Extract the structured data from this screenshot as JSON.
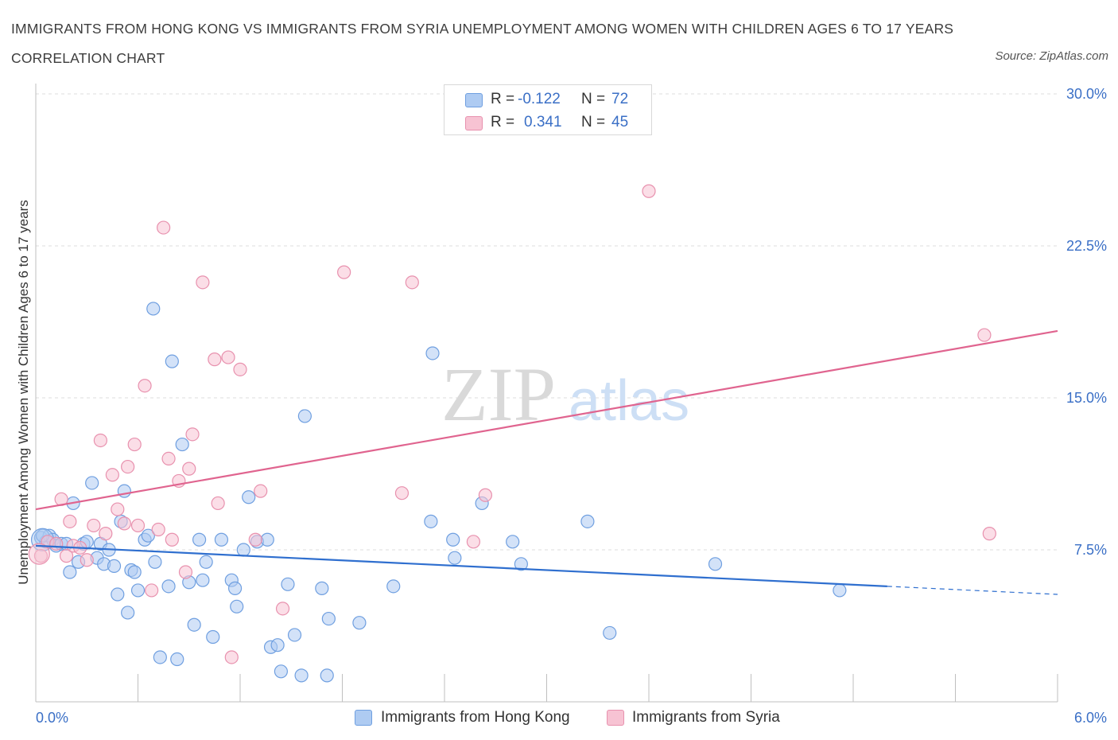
{
  "title": "IMMIGRANTS FROM HONG KONG VS IMMIGRANTS FROM SYRIA UNEMPLOYMENT AMONG WOMEN WITH CHILDREN AGES 6 TO 17 YEARS CORRELATION CHART",
  "source": "Source: ZipAtlas.com",
  "watermark": {
    "zip": "ZIP",
    "atlas": "atlas"
  },
  "legend": {
    "hk": {
      "r_label": "R =",
      "r_value": "-0.122",
      "n_label": "N =",
      "n_value": "72"
    },
    "syria": {
      "r_label": "R =",
      "r_value": "0.341",
      "n_label": "N =",
      "n_value": "45"
    }
  },
  "colors": {
    "hk_fill": "#aecbf2",
    "hk_stroke": "#6f9fe0",
    "hk_line": "#2f6fcf",
    "syria_fill": "#f7c3d3",
    "syria_stroke": "#e891ae",
    "syria_line": "#e0648f",
    "axis_text": "#3a6fc6"
  },
  "chart_data": {
    "type": "scatter",
    "title": "IMMIGRANTS FROM HONG KONG VS IMMIGRANTS FROM SYRIA UNEMPLOYMENT AMONG WOMEN WITH CHILDREN AGES 6 TO 17 YEARS CORRELATION CHART",
    "xlabel": "",
    "ylabel": "Unemployment Among Women with Children Ages 6 to 17 years",
    "xlim": [
      0,
      6.0
    ],
    "ylim": [
      0,
      30.0
    ],
    "x_tick_labels": [
      "0.0%",
      "6.0%"
    ],
    "y_tick_labels": [
      "7.5%",
      "15.0%",
      "22.5%",
      "30.0%"
    ],
    "y_ticks": [
      7.5,
      15.0,
      22.5,
      30.0
    ],
    "grid": true,
    "legend_position": "top-center",
    "series": [
      {
        "name": "Immigrants from Hong Kong",
        "points": [
          [
            0.03,
            8.1
          ],
          [
            0.06,
            7.9
          ],
          [
            0.08,
            8.2
          ],
          [
            0.1,
            8.0
          ],
          [
            0.12,
            7.7
          ],
          [
            0.15,
            7.8
          ],
          [
            0.18,
            7.8
          ],
          [
            0.2,
            6.4
          ],
          [
            0.22,
            9.8
          ],
          [
            0.25,
            6.9
          ],
          [
            0.28,
            7.8
          ],
          [
            0.3,
            7.9
          ],
          [
            0.33,
            10.8
          ],
          [
            0.36,
            7.1
          ],
          [
            0.38,
            7.8
          ],
          [
            0.4,
            6.8
          ],
          [
            0.43,
            7.5
          ],
          [
            0.46,
            6.7
          ],
          [
            0.48,
            5.3
          ],
          [
            0.5,
            8.9
          ],
          [
            0.52,
            10.4
          ],
          [
            0.54,
            4.4
          ],
          [
            0.56,
            6.5
          ],
          [
            0.58,
            6.4
          ],
          [
            0.6,
            5.5
          ],
          [
            0.64,
            8.0
          ],
          [
            0.66,
            8.2
          ],
          [
            0.69,
            19.4
          ],
          [
            0.7,
            6.9
          ],
          [
            0.73,
            2.2
          ],
          [
            0.78,
            5.7
          ],
          [
            0.8,
            16.8
          ],
          [
            0.83,
            2.1
          ],
          [
            0.86,
            12.7
          ],
          [
            0.9,
            5.9
          ],
          [
            0.93,
            3.8
          ],
          [
            0.96,
            8.0
          ],
          [
            0.98,
            6.0
          ],
          [
            1.0,
            6.9
          ],
          [
            1.04,
            3.2
          ],
          [
            1.09,
            8.0
          ],
          [
            1.15,
            6.0
          ],
          [
            1.17,
            5.6
          ],
          [
            1.18,
            4.7
          ],
          [
            1.22,
            7.5
          ],
          [
            1.25,
            10.1
          ],
          [
            1.3,
            7.9
          ],
          [
            1.36,
            8.0
          ],
          [
            1.38,
            2.7
          ],
          [
            1.42,
            2.8
          ],
          [
            1.44,
            1.5
          ],
          [
            1.48,
            5.8
          ],
          [
            1.52,
            3.3
          ],
          [
            1.56,
            1.3
          ],
          [
            1.58,
            14.1
          ],
          [
            1.68,
            5.6
          ],
          [
            1.71,
            1.3
          ],
          [
            1.72,
            4.1
          ],
          [
            1.9,
            3.9
          ],
          [
            2.1,
            5.7
          ],
          [
            2.32,
            8.9
          ],
          [
            2.33,
            17.2
          ],
          [
            2.45,
            8.0
          ],
          [
            2.46,
            7.1
          ],
          [
            2.62,
            9.8
          ],
          [
            2.8,
            7.9
          ],
          [
            2.85,
            6.8
          ],
          [
            3.24,
            8.9
          ],
          [
            3.37,
            3.4
          ],
          [
            3.99,
            6.8
          ],
          [
            4.72,
            5.5
          ],
          [
            0.04,
            8.2
          ]
        ]
      },
      {
        "name": "Immigrants from Syria",
        "points": [
          [
            0.03,
            7.2
          ],
          [
            0.07,
            7.9
          ],
          [
            0.12,
            7.8
          ],
          [
            0.15,
            10.0
          ],
          [
            0.18,
            7.2
          ],
          [
            0.2,
            8.9
          ],
          [
            0.22,
            7.7
          ],
          [
            0.26,
            7.6
          ],
          [
            0.3,
            7.0
          ],
          [
            0.34,
            8.7
          ],
          [
            0.38,
            12.9
          ],
          [
            0.41,
            8.3
          ],
          [
            0.45,
            11.2
          ],
          [
            0.48,
            9.5
          ],
          [
            0.52,
            8.8
          ],
          [
            0.54,
            11.6
          ],
          [
            0.58,
            12.7
          ],
          [
            0.6,
            8.7
          ],
          [
            0.64,
            15.6
          ],
          [
            0.68,
            5.5
          ],
          [
            0.72,
            8.5
          ],
          [
            0.75,
            23.4
          ],
          [
            0.78,
            12.0
          ],
          [
            0.8,
            8.0
          ],
          [
            0.84,
            10.9
          ],
          [
            0.88,
            6.4
          ],
          [
            0.9,
            11.5
          ],
          [
            0.92,
            13.2
          ],
          [
            0.98,
            20.7
          ],
          [
            1.05,
            16.9
          ],
          [
            1.07,
            9.8
          ],
          [
            1.13,
            17.0
          ],
          [
            1.15,
            2.2
          ],
          [
            1.2,
            16.4
          ],
          [
            1.29,
            8.0
          ],
          [
            1.32,
            10.4
          ],
          [
            1.45,
            4.6
          ],
          [
            1.81,
            21.2
          ],
          [
            2.15,
            10.3
          ],
          [
            2.21,
            20.7
          ],
          [
            2.57,
            7.9
          ],
          [
            2.64,
            10.2
          ],
          [
            3.6,
            25.2
          ],
          [
            5.57,
            18.1
          ],
          [
            5.6,
            8.3
          ]
        ]
      }
    ],
    "trend_lines": [
      {
        "series": "Immigrants from Hong Kong",
        "x": [
          0.0,
          6.0
        ],
        "y": [
          7.7,
          5.3
        ],
        "solid_until_x": 5.0
      },
      {
        "series": "Immigrants from Syria",
        "x": [
          0.0,
          6.0
        ],
        "y": [
          9.5,
          18.3
        ]
      }
    ]
  },
  "bottom_legend": {
    "hk": "Immigrants from Hong Kong",
    "syria": "Immigrants from Syria"
  }
}
